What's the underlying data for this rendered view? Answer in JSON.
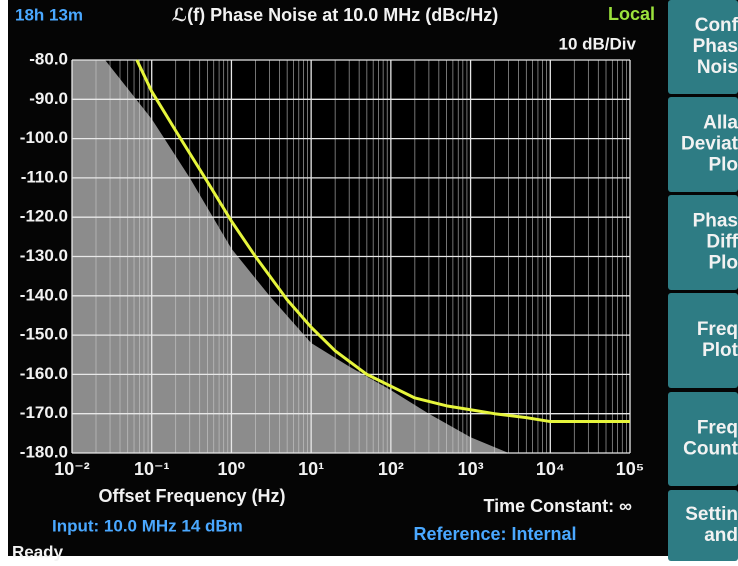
{
  "chart_data": {
    "type": "line",
    "title": "ℒ(f) Phase Noise at 10.0 MHz (dBc/Hz)",
    "elapsed": "18h 13m",
    "status": "Local",
    "scale_label": "10 dB/Div",
    "x_label": "Offset Frequency (Hz)",
    "time_constant": "Time Constant: ∞",
    "xlog": true,
    "grid": true,
    "minor_grid": true,
    "xlim": [
      0.01,
      100000
    ],
    "ylim": [
      -180,
      -80
    ],
    "xticks": [
      {
        "value": 0.01,
        "label": "10⁻²"
      },
      {
        "value": 0.1,
        "label": "10⁻¹"
      },
      {
        "value": 1,
        "label": "10⁰"
      },
      {
        "value": 10,
        "label": "10¹"
      },
      {
        "value": 100,
        "label": "10²"
      },
      {
        "value": 1000,
        "label": "10³"
      },
      {
        "value": 10000,
        "label": "10⁴"
      },
      {
        "value": 100000,
        "label": "10⁵"
      }
    ],
    "yticks": [
      {
        "value": -80,
        "label": "-80.0"
      },
      {
        "value": -90,
        "label": "-90.0"
      },
      {
        "value": -100,
        "label": "-100.0"
      },
      {
        "value": -110,
        "label": "-110.0"
      },
      {
        "value": -120,
        "label": "-120.0"
      },
      {
        "value": -130,
        "label": "-130.0"
      },
      {
        "value": -140,
        "label": "-140.0"
      },
      {
        "value": -150,
        "label": "-150.0"
      },
      {
        "value": -160,
        "label": "-160.0"
      },
      {
        "value": -170,
        "label": "-170.0"
      },
      {
        "value": -180,
        "label": "-180.0"
      }
    ],
    "series": [
      {
        "kind": "area",
        "color": "#8c8c8c",
        "x": [
          0.026,
          0.1,
          0.3,
          1,
          3,
          10,
          30,
          100,
          300,
          1000,
          3000,
          100000
        ],
        "values": [
          -80,
          -95,
          -110,
          -128,
          -140,
          -152,
          -158,
          -164,
          -170,
          -176,
          -180,
          -180
        ]
      },
      {
        "kind": "line",
        "color": "#e6f53c",
        "x": [
          0.065,
          0.1,
          0.2,
          0.5,
          1,
          2,
          5,
          10,
          20,
          50,
          100,
          200,
          500,
          1000,
          2000,
          5000,
          10000,
          20000,
          50000,
          100000
        ],
        "values": [
          -80,
          -88,
          -98,
          -111,
          -121,
          -130,
          -141,
          -148,
          -154,
          -160,
          -163,
          -166,
          -168,
          -169,
          -170,
          -171,
          -172,
          -172,
          -172,
          -172
        ]
      }
    ]
  },
  "footer": {
    "input": "Input: 10.0 MHz 14 dBm",
    "reference": "Reference: Internal",
    "state": "Ready"
  },
  "softkeys": [
    [
      "Conf",
      "Phas",
      "Nois"
    ],
    [
      "Alla",
      "Deviat",
      "Plo"
    ],
    [
      "Phas",
      "Diff",
      "Plo"
    ],
    [
      "Freq",
      "Plot"
    ],
    [
      "Freq",
      "Count"
    ],
    [
      "Settin",
      "and"
    ]
  ]
}
